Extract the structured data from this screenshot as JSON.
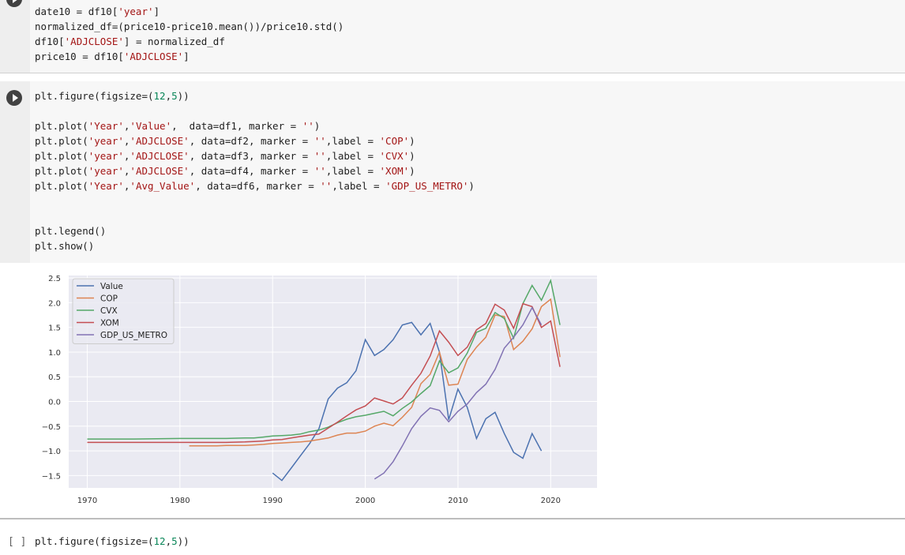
{
  "cell1": {
    "lines": [
      [
        [
          "plt.figure(figsize=(",
          ""
        ],
        [
          "12",
          "num"
        ],
        [
          ",",
          ""
        ],
        [
          "5",
          "num"
        ],
        [
          "))",
          ""
        ]
      ],
      [],
      [
        [
          "plt.plot(",
          ""
        ],
        [
          "'Year'",
          "str"
        ],
        [
          ",",
          ""
        ],
        [
          "'Value'",
          "str"
        ],
        [
          ",  data=df1, marker = ",
          ""
        ],
        [
          "''",
          "str"
        ],
        [
          ")",
          ""
        ]
      ],
      [
        [
          "plt.plot(",
          ""
        ],
        [
          "'year'",
          "str"
        ],
        [
          ",",
          ""
        ],
        [
          "'ADJCLOSE'",
          "str"
        ],
        [
          ", data=df2, marker = ",
          ""
        ],
        [
          "''",
          "str"
        ],
        [
          ",label = ",
          ""
        ],
        [
          "'COP'",
          "str"
        ],
        [
          ")",
          ""
        ]
      ],
      [
        [
          "plt.plot(",
          ""
        ],
        [
          "'year'",
          "str"
        ],
        [
          ",",
          ""
        ],
        [
          "'ADJCLOSE'",
          "str"
        ],
        [
          ", data=df3, marker = ",
          ""
        ],
        [
          "''",
          "str"
        ],
        [
          ",label = ",
          ""
        ],
        [
          "'CVX'",
          "str"
        ],
        [
          ")",
          ""
        ]
      ],
      [
        [
          "plt.plot(",
          ""
        ],
        [
          "'year'",
          "str"
        ],
        [
          ",",
          ""
        ],
        [
          "'ADJCLOSE'",
          "str"
        ],
        [
          ", data=df4, marker = ",
          ""
        ],
        [
          "''",
          "str"
        ],
        [
          ",label = ",
          ""
        ],
        [
          "'XOM'",
          "str"
        ],
        [
          ")",
          ""
        ]
      ],
      [
        [
          "plt.plot(",
          ""
        ],
        [
          "'Year'",
          "str"
        ],
        [
          ",",
          ""
        ],
        [
          "'Avg_Value'",
          "str"
        ],
        [
          ", data=df6, marker = ",
          ""
        ],
        [
          "''",
          "str"
        ],
        [
          ",label = ",
          ""
        ],
        [
          "'GDP_US_METRO'",
          "str"
        ],
        [
          ")",
          ""
        ]
      ],
      [],
      [],
      [
        [
          "plt.legend()",
          ""
        ]
      ],
      [
        [
          "plt.show()",
          ""
        ]
      ]
    ]
  },
  "cell0": {
    "lines": [
      [
        [
          "date10 = df10[",
          ""
        ],
        [
          "'year'",
          "str"
        ],
        [
          "]",
          ""
        ]
      ],
      [
        [
          "normalized_df=(price10-price10.mean())/price10.std()",
          ""
        ]
      ],
      [
        [
          "df10[",
          ""
        ],
        [
          "'ADJCLOSE'",
          "str"
        ],
        [
          "] = normalized_df",
          ""
        ]
      ],
      [
        [
          "price10 = df10[",
          ""
        ],
        [
          "'ADJCLOSE'",
          "str"
        ],
        [
          "]",
          ""
        ]
      ]
    ]
  },
  "cell2": {
    "prompt": "[ ]",
    "lines": [
      [
        [
          "plt.figure(figsize=(",
          ""
        ],
        [
          "12",
          "num"
        ],
        [
          ",",
          ""
        ],
        [
          "5",
          "num"
        ],
        [
          "))",
          ""
        ]
      ]
    ]
  },
  "colors": {
    "string": "#a31515",
    "number": "#098658",
    "plot_bg": "#eaeaf2"
  },
  "chart_data": {
    "type": "line",
    "xlim": [
      1968,
      2025
    ],
    "ylim": [
      -1.75,
      2.55
    ],
    "x_ticks": [
      1970,
      1980,
      1990,
      2000,
      2010,
      2020
    ],
    "y_ticks": [
      2.5,
      2.0,
      1.5,
      1.0,
      0.5,
      0.0,
      -0.5,
      -1.0,
      -1.5
    ],
    "y_tick_labels": [
      "2.5",
      "2.0",
      "1.5",
      "1.0",
      "0.5",
      "0.0",
      "−0.5",
      "−1.0",
      "−1.5"
    ],
    "grid": true,
    "legend_position": "top-left",
    "series": [
      {
        "name": "Value",
        "color": "#4c72b0",
        "x": [
          1990,
          1991,
          1992,
          1993,
          1994,
          1995,
          1996,
          1997,
          1998,
          1999,
          2000,
          2001,
          2002,
          2003,
          2004,
          2005,
          2006,
          2007,
          2008,
          2009,
          2010,
          2011,
          2012,
          2013,
          2014,
          2015,
          2016,
          2017,
          2018,
          2019
        ],
        "y": [
          -1.45,
          -1.6,
          -1.35,
          -1.1,
          -0.85,
          -0.55,
          0.05,
          0.27,
          0.38,
          0.62,
          1.25,
          0.93,
          1.05,
          1.25,
          1.55,
          1.6,
          1.35,
          1.58,
          1.0,
          -0.37,
          0.25,
          -0.12,
          -0.75,
          -0.35,
          -0.22,
          -0.65,
          -1.03,
          -1.15,
          -0.65,
          -1.0
        ]
      },
      {
        "name": "COP",
        "color": "#dd8452",
        "x": [
          1981,
          1982,
          1983,
          1984,
          1985,
          1986,
          1987,
          1988,
          1989,
          1990,
          1991,
          1992,
          1993,
          1994,
          1995,
          1996,
          1997,
          1998,
          1999,
          2000,
          2001,
          2002,
          2003,
          2004,
          2005,
          2006,
          2007,
          2008,
          2009,
          2010,
          2011,
          2012,
          2013,
          2014,
          2015,
          2016,
          2017,
          2018,
          2019,
          2020,
          2021
        ],
        "y": [
          -0.9,
          -0.9,
          -0.9,
          -0.9,
          -0.89,
          -0.89,
          -0.89,
          -0.88,
          -0.87,
          -0.85,
          -0.84,
          -0.83,
          -0.82,
          -0.8,
          -0.77,
          -0.74,
          -0.68,
          -0.64,
          -0.64,
          -0.6,
          -0.5,
          -0.44,
          -0.49,
          -0.32,
          -0.12,
          0.36,
          0.55,
          1.0,
          0.33,
          0.35,
          0.85,
          1.1,
          1.3,
          1.75,
          1.72,
          1.05,
          1.22,
          1.47,
          1.92,
          2.07,
          0.9
        ]
      },
      {
        "name": "CVX",
        "color": "#55a868",
        "x": [
          1970,
          1975,
          1980,
          1981,
          1983,
          1985,
          1987,
          1988,
          1989,
          1990,
          1991,
          1992,
          1993,
          1994,
          1995,
          1996,
          1997,
          1998,
          1999,
          2000,
          2001,
          2002,
          2003,
          2004,
          2005,
          2006,
          2007,
          2008,
          2009,
          2010,
          2011,
          2012,
          2013,
          2014,
          2015,
          2016,
          2017,
          2018,
          2019,
          2020,
          2021
        ],
        "y": [
          -0.76,
          -0.76,
          -0.75,
          -0.75,
          -0.75,
          -0.75,
          -0.74,
          -0.74,
          -0.72,
          -0.7,
          -0.69,
          -0.68,
          -0.66,
          -0.61,
          -0.58,
          -0.52,
          -0.43,
          -0.36,
          -0.31,
          -0.28,
          -0.24,
          -0.2,
          -0.29,
          -0.14,
          -0.01,
          0.16,
          0.32,
          0.82,
          0.58,
          0.68,
          0.98,
          1.4,
          1.48,
          1.8,
          1.68,
          1.28,
          1.98,
          2.35,
          2.05,
          2.45,
          1.55
        ]
      },
      {
        "name": "XOM",
        "color": "#c44e52",
        "x": [
          1970,
          1975,
          1980,
          1985,
          1987,
          1988,
          1989,
          1990,
          1991,
          1992,
          1993,
          1994,
          1995,
          1996,
          1997,
          1998,
          1999,
          2000,
          2001,
          2002,
          2003,
          2004,
          2005,
          2006,
          2007,
          2008,
          2009,
          2010,
          2011,
          2012,
          2013,
          2014,
          2015,
          2016,
          2017,
          2018,
          2019,
          2020,
          2021
        ],
        "y": [
          -0.83,
          -0.83,
          -0.83,
          -0.83,
          -0.82,
          -0.81,
          -0.8,
          -0.78,
          -0.77,
          -0.74,
          -0.71,
          -0.68,
          -0.66,
          -0.54,
          -0.42,
          -0.29,
          -0.17,
          -0.09,
          0.07,
          0.01,
          -0.05,
          0.07,
          0.33,
          0.57,
          0.92,
          1.43,
          1.2,
          0.93,
          1.1,
          1.45,
          1.58,
          1.97,
          1.85,
          1.48,
          1.98,
          1.92,
          1.5,
          1.63,
          0.7
        ]
      },
      {
        "name": "GDP_US_METRO",
        "color": "#8172b3",
        "x": [
          2001,
          2002,
          2003,
          2004,
          2005,
          2006,
          2007,
          2008,
          2009,
          2010,
          2011,
          2012,
          2013,
          2014,
          2015,
          2016,
          2017,
          2018,
          2019
        ],
        "y": [
          -1.57,
          -1.45,
          -1.22,
          -0.9,
          -0.55,
          -0.3,
          -0.13,
          -0.18,
          -0.41,
          -0.2,
          -0.05,
          0.18,
          0.35,
          0.65,
          1.08,
          1.3,
          1.55,
          1.9,
          1.55
        ]
      }
    ]
  }
}
